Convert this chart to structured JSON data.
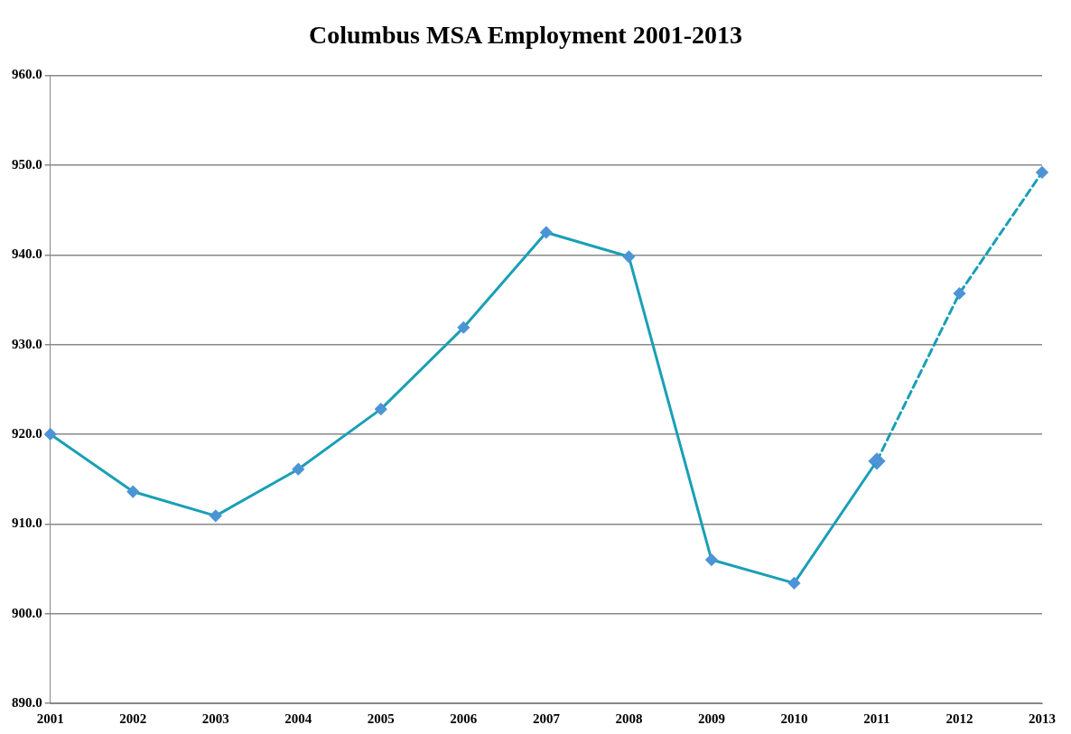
{
  "chart_data": {
    "type": "line",
    "title": "Columbus MSA Employment 2001-2013",
    "categories": [
      "2001",
      "2002",
      "2003",
      "2004",
      "2005",
      "2006",
      "2007",
      "2008",
      "2009",
      "2010",
      "2011",
      "2012",
      "2013"
    ],
    "series": [
      {
        "color": "#1a9fb6",
        "line_style": "solid",
        "values": [
          920.0,
          913.6,
          910.9,
          916.1,
          922.8,
          931.9,
          942.5,
          939.8,
          906.0,
          903.4,
          917.0,
          null,
          null
        ]
      },
      {
        "color": "#1a9fb6",
        "line_style": "dashed",
        "values": [
          null,
          null,
          null,
          null,
          null,
          null,
          null,
          null,
          null,
          null,
          917.0,
          935.7,
          949.2
        ]
      }
    ],
    "ylim": [
      890,
      960
    ],
    "yticks": [
      {
        "value": 890,
        "label": "890.0"
      },
      {
        "value": 900,
        "label": "900.0"
      },
      {
        "value": 910,
        "label": "910.0"
      },
      {
        "value": 920,
        "label": "920.0"
      },
      {
        "value": 930,
        "label": "930.0"
      },
      {
        "value": 940,
        "label": "940.0"
      },
      {
        "value": 950,
        "label": "950.0"
      },
      {
        "value": 960,
        "label": "960.0"
      }
    ],
    "grid": "y",
    "marker": "diamond"
  }
}
